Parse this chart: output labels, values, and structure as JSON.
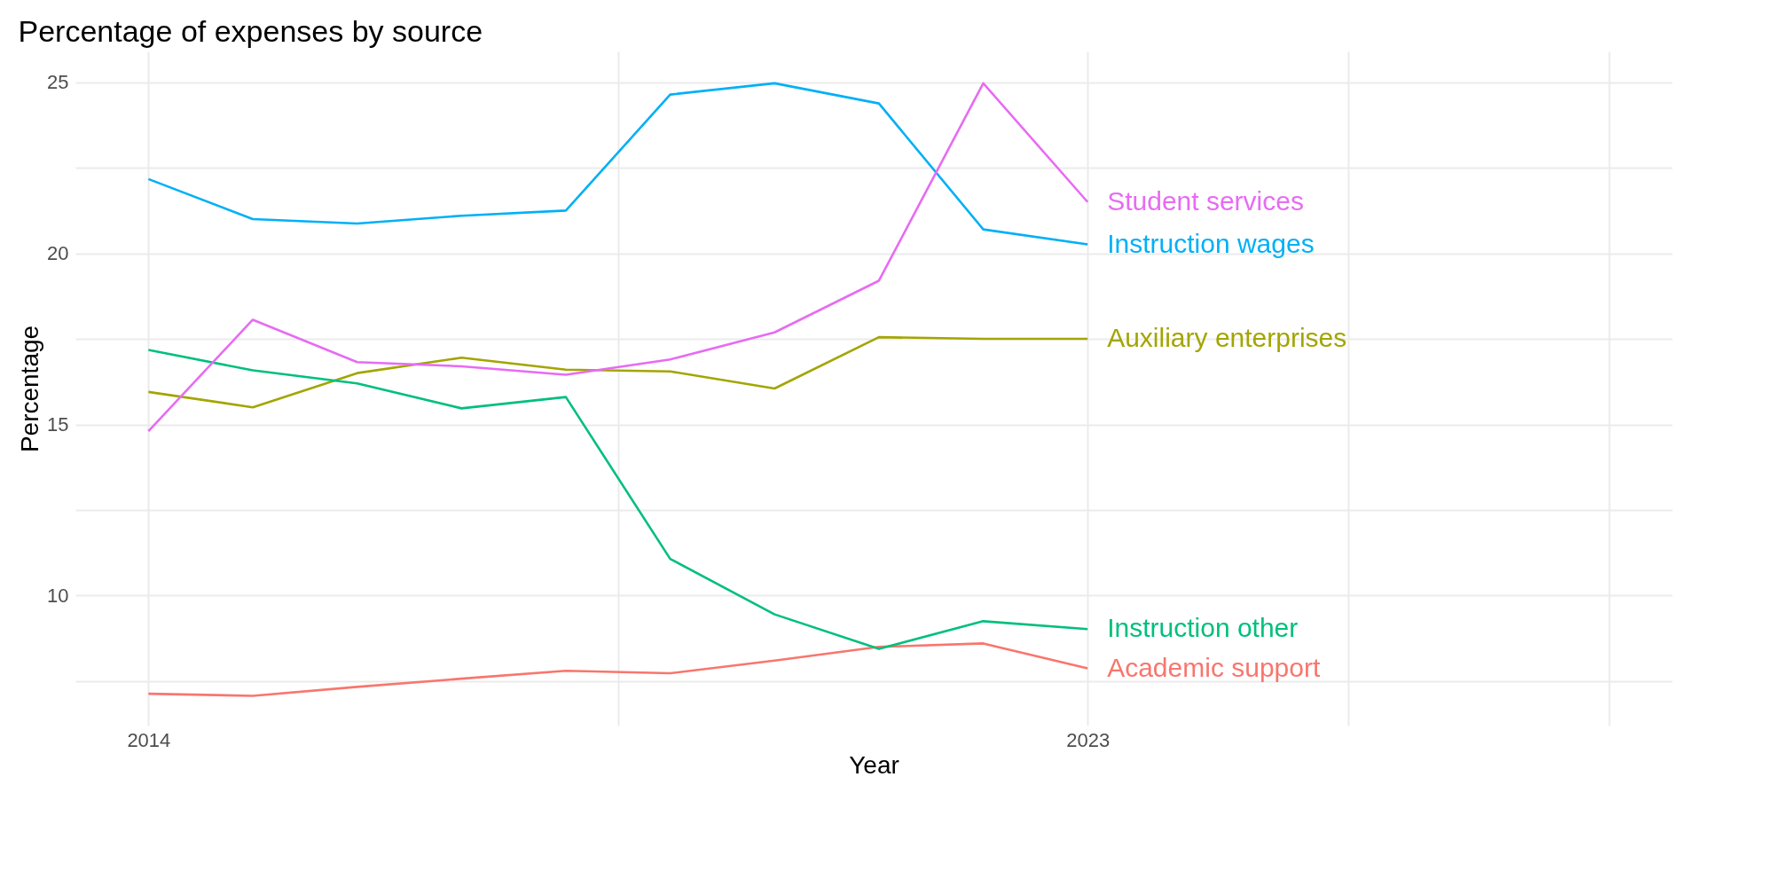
{
  "chart_data": {
    "type": "line",
    "title": "Percentage of expenses by source",
    "xlabel": "Year",
    "ylabel": "Percentage",
    "x": [
      2014,
      2015,
      2016,
      2017,
      2018,
      2019,
      2020,
      2021,
      2022,
      2023
    ],
    "series": [
      {
        "name": "Academic support",
        "color": "#f8766d",
        "values": [
          7.13,
          7.07,
          7.33,
          7.57,
          7.8,
          7.73,
          8.1,
          8.5,
          8.6,
          7.87
        ]
      },
      {
        "name": "Auxiliary enterprises",
        "color": "#a3a500",
        "values": [
          15.95,
          15.5,
          16.5,
          16.95,
          16.6,
          16.55,
          16.05,
          17.55,
          17.5,
          17.5
        ]
      },
      {
        "name": "Instruction other",
        "color": "#00bf7d",
        "values": [
          17.18,
          16.58,
          16.2,
          15.47,
          15.8,
          11.07,
          9.45,
          8.44,
          9.25,
          9.02
        ]
      },
      {
        "name": "Instruction wages",
        "color": "#00b0f6",
        "values": [
          22.17,
          21.0,
          20.87,
          21.1,
          21.25,
          24.64,
          24.97,
          24.38,
          20.7,
          20.26
        ]
      },
      {
        "name": "Student services",
        "color": "#e76bf3",
        "values": [
          14.8,
          18.06,
          16.82,
          16.7,
          16.45,
          16.9,
          17.69,
          19.2,
          24.97,
          21.5
        ]
      }
    ],
    "xlim": [
      2013.3,
      2028.6
    ],
    "xticks": [
      2014,
      {
        "value": 2018.5,
        "label": null
      },
      2023,
      {
        "value": 2025.5,
        "label": null
      },
      {
        "value": 2028,
        "label": null
      }
    ],
    "ylim": [
      6.2,
      25.9
    ],
    "yticks": [
      {
        "value": 7.5,
        "label": null
      },
      10,
      {
        "value": 12.5,
        "label": null
      },
      15,
      {
        "value": 17.5,
        "label": null
      },
      20,
      {
        "value": 22.5,
        "label": null
      },
      25
    ],
    "grid": true,
    "legend": false,
    "marker": "none",
    "line_style": "solid"
  }
}
